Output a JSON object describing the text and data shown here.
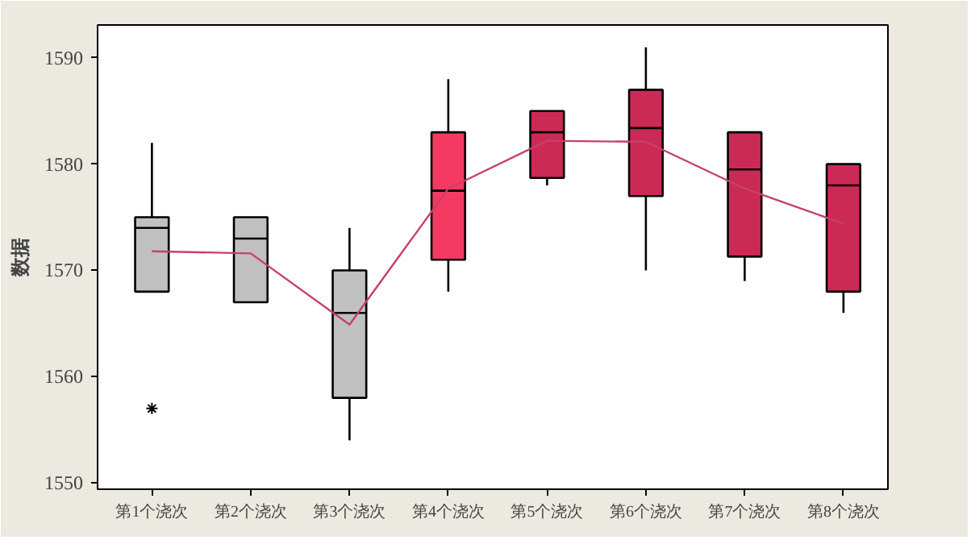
{
  "chart_data": {
    "type": "box",
    "ylabel": "数据",
    "categories": [
      "第1个浇次",
      "第2个浇次",
      "第3个浇次",
      "第4个浇次",
      "第5个浇次",
      "第6个浇次",
      "第7个浇次",
      "第8个浇次"
    ],
    "ylim": [
      1549.4,
      1593.1
    ],
    "yticks": [
      1550,
      1560,
      1570,
      1580,
      1590
    ],
    "grid": false,
    "series": [
      {
        "colors": [
          "#c0c0c0",
          "#c0c0c0",
          "#c0c0c0",
          "#f43a60",
          "#cc2a56",
          "#cc2a56",
          "#cc2a56",
          "#cc2a56"
        ],
        "boxes": [
          {
            "low": 1568,
            "q1": 1568,
            "median": 1574,
            "q3": 1575,
            "high": 1582,
            "outliers": [
              1557
            ]
          },
          {
            "low": 1567,
            "q1": 1567,
            "median": 1573,
            "q3": 1575,
            "high": 1575
          },
          {
            "low": 1554,
            "q1": 1558,
            "median": 1566,
            "q3": 1570,
            "high": 1574
          },
          {
            "low": 1568,
            "q1": 1571,
            "median": 1577.5,
            "q3": 1583,
            "high": 1588
          },
          {
            "low": 1578,
            "q1": 1578.7,
            "median": 1583,
            "q3": 1585,
            "high": 1585
          },
          {
            "low": 1570,
            "q1": 1577,
            "median": 1583.4,
            "q3": 1587,
            "high": 1591
          },
          {
            "low": 1569,
            "q1": 1571.3,
            "median": 1579.5,
            "q3": 1583,
            "high": 1583
          },
          {
            "low": 1566,
            "q1": 1568,
            "median": 1578,
            "q3": 1580,
            "high": 1580
          }
        ]
      },
      {
        "type": "line",
        "color": "#c8406a",
        "values": [
          1571.8,
          1571.6,
          1564.9,
          1577.7,
          1582.2,
          1582.1,
          1577.7,
          1574.4
        ]
      }
    ]
  }
}
